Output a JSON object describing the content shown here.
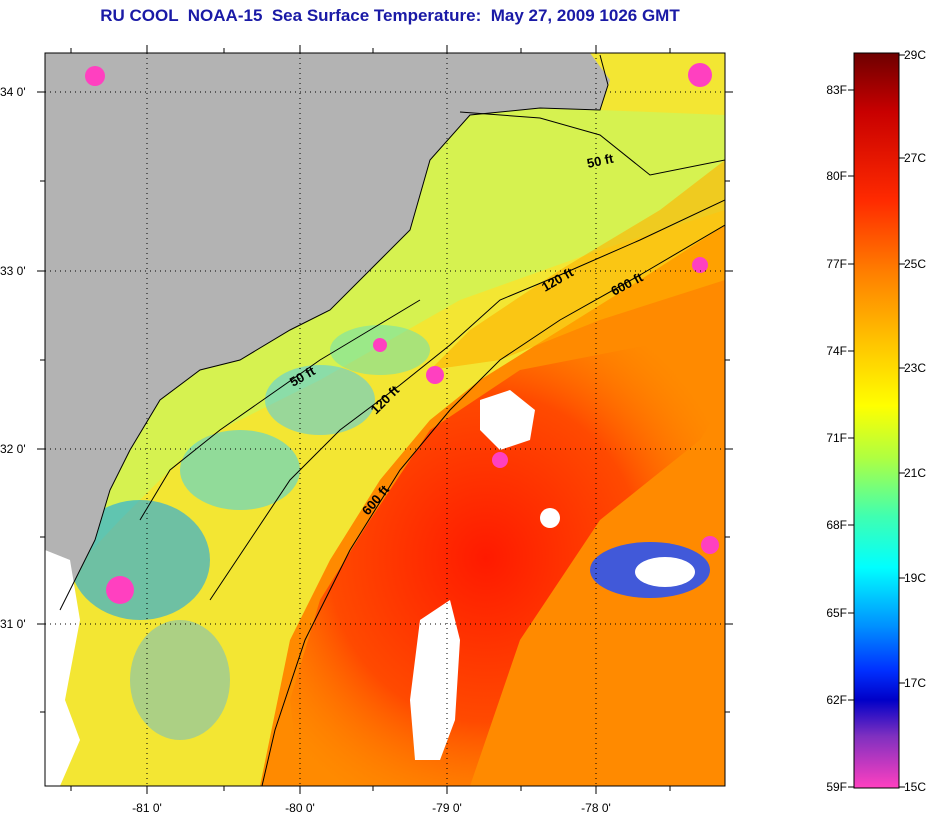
{
  "title": "RU COOL  NOAA-15  Sea Surface Temperature:  May 27, 2009 1026 GMT",
  "map": {
    "lat_labels": [
      "34 0'",
      "33 0'",
      "32 0'",
      "31 0'"
    ],
    "lon_labels": [
      "-81 0'",
      "-80 0'",
      "-79 0'",
      "-78 0'"
    ],
    "contours": [
      {
        "label": "50 ft"
      },
      {
        "label": "120 ft"
      },
      {
        "label": "600 ft"
      },
      {
        "label": "50 ft"
      },
      {
        "label": "120 ft"
      },
      {
        "label": "600 ft"
      }
    ],
    "colors": {
      "land": "#b3b3b3",
      "cloud": "#ffffff",
      "coast": "#000000"
    }
  },
  "colorbar": {
    "fahrenheit_labels": [
      "83F",
      "80F",
      "77F",
      "74F",
      "71F",
      "68F",
      "65F",
      "62F",
      "59F"
    ],
    "celsius_labels": [
      "29C",
      "27C",
      "25C",
      "23C",
      "21C",
      "19C",
      "17C",
      "15C"
    ]
  }
}
